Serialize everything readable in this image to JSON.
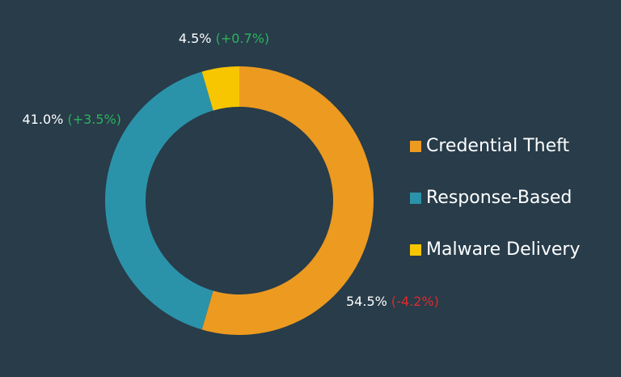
{
  "chart_data": {
    "type": "donut",
    "categories": [
      "Credential Theft",
      "Response-Based",
      "Malware Delivery"
    ],
    "values": [
      54.5,
      41.0,
      4.5
    ],
    "value_labels": [
      "54.5%",
      "41.0%",
      "4.5%"
    ],
    "changes": [
      -4.2,
      3.5,
      0.7
    ],
    "change_labels": [
      "(-4.2%)",
      "(+3.5%)",
      "(+0.7%)"
    ],
    "colors": [
      "#ec9a20",
      "#2b93a9",
      "#f7c600"
    ],
    "positive_color": "#2bb35a",
    "negative_color": "#e02a2a",
    "legend": "right"
  }
}
